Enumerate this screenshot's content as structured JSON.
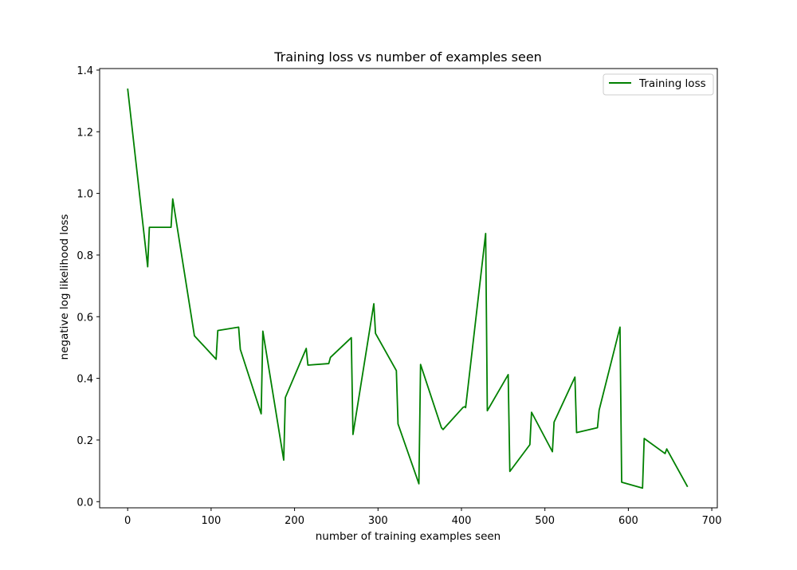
{
  "chart_data": {
    "type": "line",
    "title": "Training loss vs number of examples seen",
    "xlabel": "number of training examples seen",
    "ylabel": "negative log likelihood loss",
    "xlim": [
      -33.6,
      706.6
    ],
    "ylim": [
      -0.02,
      1.405
    ],
    "xticks": [
      0,
      100,
      200,
      300,
      400,
      500,
      600,
      700
    ],
    "yticks": [
      0.0,
      0.2,
      0.4,
      0.6,
      0.8,
      1.0,
      1.2,
      1.4
    ],
    "ytick_labels": [
      "0.0",
      "0.2",
      "0.4",
      "0.6",
      "0.8",
      "1.0",
      "1.2",
      "1.4"
    ],
    "grid": false,
    "legend_position": "top-right",
    "series": [
      {
        "name": "Training loss",
        "color": "#008000",
        "x": [
          0,
          24,
          26,
          52,
          54,
          80,
          106,
          108,
          133,
          135,
          160,
          162,
          187,
          189,
          214,
          216,
          241,
          243,
          268,
          270,
          295,
          297,
          322,
          324,
          349,
          351,
          376,
          378,
          402,
          404,
          405,
          429,
          431,
          456,
          458,
          482,
          484,
          509,
          511,
          536,
          538,
          563,
          565,
          590,
          592,
          617,
          619,
          644,
          646,
          671
        ],
        "y": [
          1.34,
          0.762,
          0.89,
          0.89,
          0.982,
          0.538,
          0.462,
          0.555,
          0.566,
          0.494,
          0.285,
          0.553,
          0.135,
          0.338,
          0.497,
          0.443,
          0.448,
          0.468,
          0.532,
          0.218,
          0.642,
          0.546,
          0.425,
          0.252,
          0.058,
          0.445,
          0.24,
          0.234,
          0.306,
          0.308,
          0.305,
          0.87,
          0.295,
          0.412,
          0.098,
          0.185,
          0.29,
          0.162,
          0.258,
          0.404,
          0.224,
          0.24,
          0.297,
          0.566,
          0.063,
          0.044,
          0.205,
          0.156,
          0.171,
          0.048
        ]
      }
    ]
  }
}
